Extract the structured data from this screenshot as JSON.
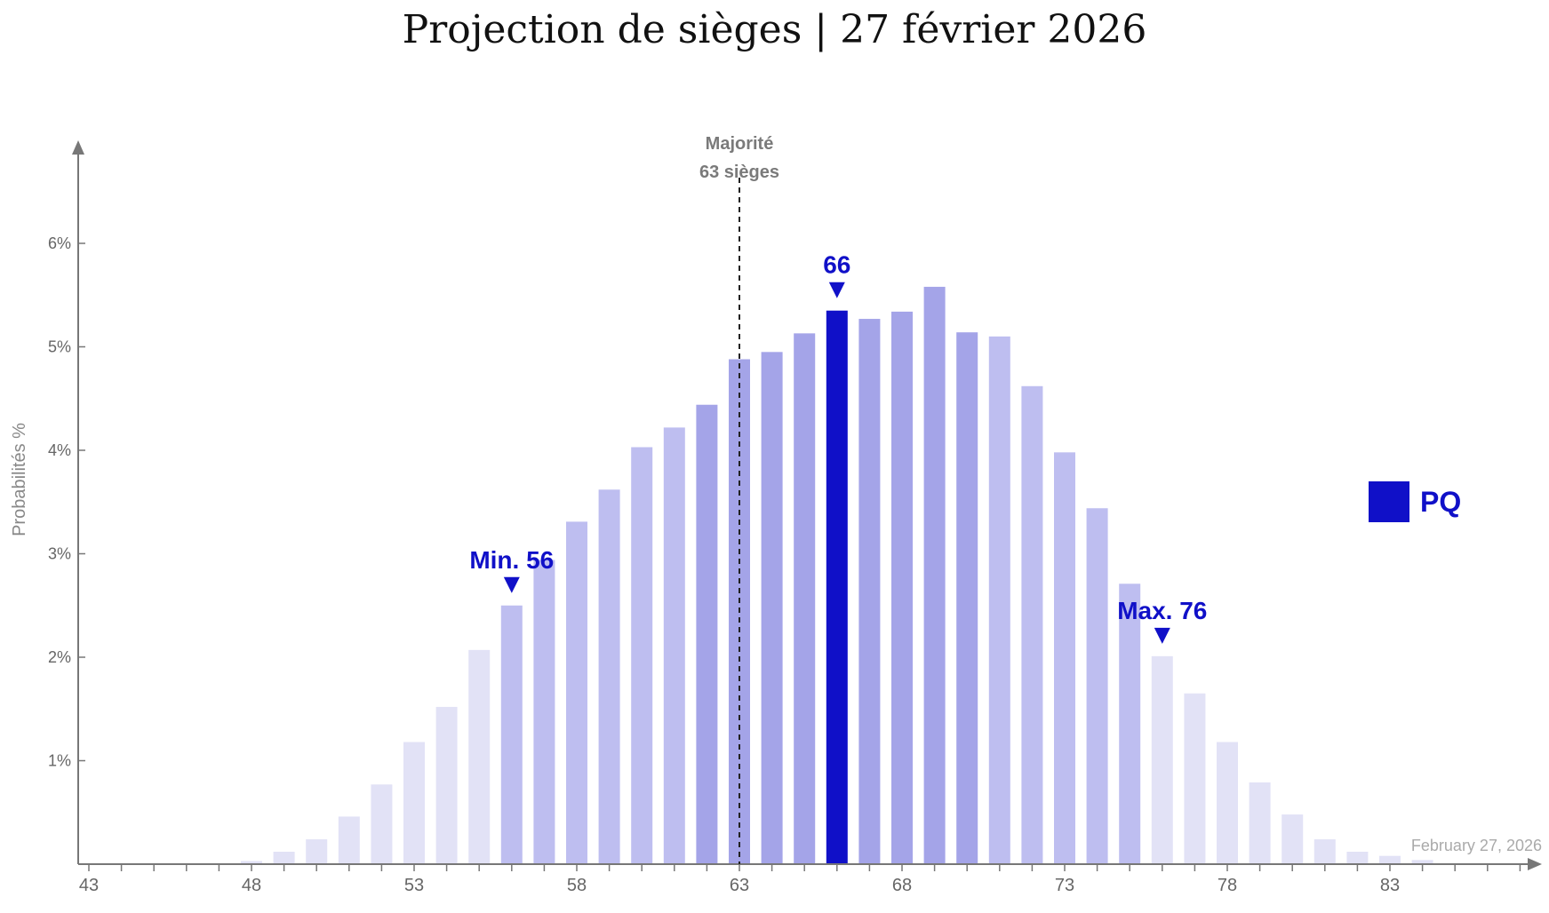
{
  "title": "Projection de sièges | 27 février 2026",
  "chart_data": {
    "type": "bar",
    "title": "Projection de sièges | 27 février 2026",
    "xlabel": "",
    "ylabel": "Probabilités %",
    "xlim": [
      43,
      88
    ],
    "ylim": [
      0,
      7
    ],
    "x_ticks": [
      43,
      48,
      53,
      58,
      63,
      68,
      73,
      78,
      83
    ],
    "y_ticks": [
      1,
      2,
      3,
      4,
      5,
      6
    ],
    "y_tick_suffix": "%",
    "series": [
      {
        "name": "PQ",
        "color": "#1010c8",
        "x": [
          48,
          49,
          50,
          51,
          52,
          53,
          54,
          55,
          56,
          57,
          58,
          59,
          60,
          61,
          62,
          63,
          64,
          65,
          66,
          67,
          68,
          69,
          70,
          71,
          72,
          73,
          74,
          75,
          76,
          77,
          78,
          79,
          80,
          81,
          82,
          83,
          84
        ],
        "values": [
          0.03,
          0.12,
          0.24,
          0.46,
          0.77,
          1.18,
          1.52,
          2.07,
          2.5,
          2.94,
          3.31,
          3.62,
          4.03,
          4.22,
          4.44,
          4.88,
          4.95,
          5.13,
          5.35,
          5.27,
          5.34,
          5.58,
          5.14,
          5.1,
          4.62,
          3.98,
          3.44,
          2.71,
          2.01,
          1.65,
          1.18,
          0.79,
          0.48,
          0.24,
          0.12,
          0.08,
          0.04
        ]
      }
    ],
    "band_colors": {
      "outer": "#e2e2f6",
      "middle": "#bebef0",
      "inner": "#a4a4e8",
      "highlight": "#1010c8"
    },
    "majority": {
      "x": 63,
      "label_line1": "Majorité",
      "label_line2": "63 sièges"
    },
    "annotations": [
      {
        "x": 66,
        "label": "66"
      },
      {
        "x": 56,
        "label": "Min. 56"
      },
      {
        "x": 76,
        "label": "Max. 76"
      }
    ],
    "legend": {
      "label": "PQ",
      "position": "right"
    },
    "date_label": "February 27, 2026",
    "grid": false
  }
}
